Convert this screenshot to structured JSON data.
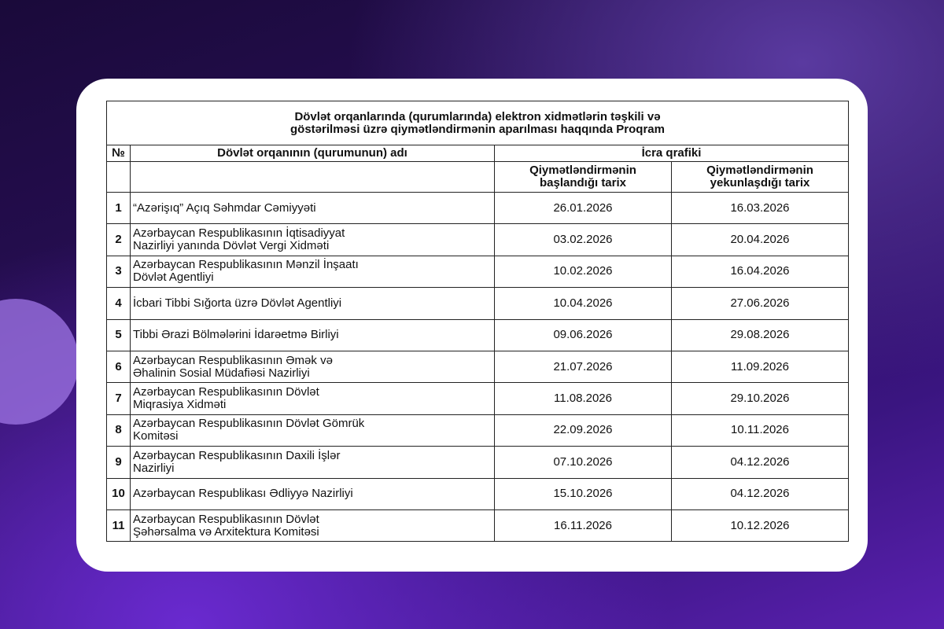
{
  "document": {
    "title_line1": "Dövlət orqanlarında (qurumlarında) elektron xidmətlərin təşkili və",
    "title_line2": "göstərilməsi üzrə qiymətləndirmənin aparılması haqqında Proqram",
    "headers": {
      "num": "№",
      "name": "Dövlət orqanının (qurumunun) adı",
      "schedule": "İcra qrafiki",
      "start_l1": "Qiymətləndirmənin",
      "start_l2": "başlandığı tarix",
      "end_l1": "Qiymətləndirmənin",
      "end_l2": "yekunlaşdığı tarix"
    },
    "rows": [
      {
        "num": "1",
        "l1": "“Azərişıq” Açıq Səhmdar Cəmiyyəti",
        "l2": "",
        "start": "26.01.2026",
        "end": "16.03.2026"
      },
      {
        "num": "2",
        "l1": "Azərbaycan Respublikasının İqtisadiyyat",
        "l2": "Nazirliyi yanında Dövlət Vergi Xidməti",
        "start": "03.02.2026",
        "end": "20.04.2026"
      },
      {
        "num": "3",
        "l1": "Azərbaycan Respublikasının Mənzil İnşaatı",
        "l2": "Dövlət Agentliyi",
        "start": "10.02.2026",
        "end": "16.04.2026"
      },
      {
        "num": "4",
        "l1": "İcbari Tibbi Sığorta üzrə Dövlət Agentliyi",
        "l2": "",
        "start": "10.04.2026",
        "end": "27.06.2026"
      },
      {
        "num": "5",
        "l1": "Tibbi Ərazi Bölmələrini İdarəetmə Birliyi",
        "l2": "",
        "start": "09.06.2026",
        "end": "29.08.2026"
      },
      {
        "num": "6",
        "l1": "Azərbaycan Respublikasının Əmək və",
        "l2": "Əhalinin Sosial Müdafiəsi Nazirliyi",
        "start": "21.07.2026",
        "end": "11.09.2026"
      },
      {
        "num": "7",
        "l1": "Azərbaycan Respublikasının Dövlət",
        "l2": "Miqrasiya Xidməti",
        "start": "11.08.2026",
        "end": "29.10.2026"
      },
      {
        "num": "8",
        "l1": "Azərbaycan Respublikasının Dövlət Gömrük",
        "l2": "Komitəsi",
        "start": "22.09.2026",
        "end": "10.11.2026"
      },
      {
        "num": "9",
        "l1": "Azərbaycan Respublikasının Daxili İşlər",
        "l2": "Nazirliyi",
        "start": "07.10.2026",
        "end": "04.12.2026"
      },
      {
        "num": "10",
        "l1": "Azərbaycan Respublikası Ədliyyə Nazirliyi",
        "l2": "",
        "start": "15.10.2026",
        "end": "04.12.2026"
      },
      {
        "num": "11",
        "l1": "Azərbaycan Respublikasının Dövlət",
        "l2": "Şəhərsalma və Arxitektura Komitəsi",
        "start": "16.11.2026",
        "end": "10.12.2026"
      }
    ]
  }
}
